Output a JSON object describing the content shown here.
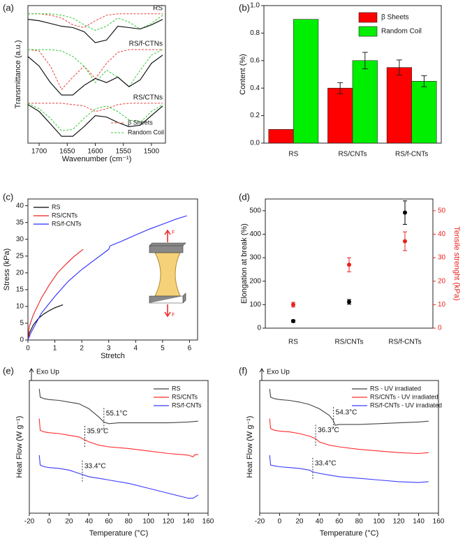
{
  "chart_data": [
    {
      "type": "spectra",
      "panel_label": "(a)",
      "xlabel": "Wavenumber (cm⁻¹)",
      "ylabel": "Transmittance (a.u.)",
      "xlim": [
        1720,
        1475
      ],
      "xticks": [
        1700,
        1650,
        1600,
        1550,
        1500
      ],
      "ylim": [
        0,
        100
      ],
      "x": [
        1720,
        1700,
        1680,
        1660,
        1640,
        1620,
        1600,
        1580,
        1560,
        1540,
        1520,
        1500,
        1480
      ],
      "line_color": "#000000",
      "legend": [
        {
          "name": "β Sheets",
          "color": "#e8413a"
        },
        {
          "name": "Random Coil",
          "color": "#33cc33"
        }
      ],
      "legend_position": "lower right",
      "samples": [
        {
          "label": "RS",
          "values": [
            90,
            89,
            87,
            85,
            84,
            81,
            73,
            75,
            85,
            84,
            83,
            86,
            90
          ],
          "beta_values": [
            94,
            94,
            93,
            91,
            86,
            84,
            89,
            93,
            94,
            94,
            94,
            94,
            94
          ],
          "random_values": [
            94,
            94,
            94,
            93,
            91,
            86,
            82,
            85,
            91,
            88,
            83,
            87,
            93
          ]
        },
        {
          "label": "RS/f-CTNs",
          "values": [
            63,
            56,
            44,
            35,
            35,
            42,
            47,
            44,
            48,
            41,
            46,
            58,
            64
          ],
          "beta_values": [
            68,
            67,
            56,
            39,
            48,
            56,
            47,
            58,
            66,
            68,
            68,
            68,
            68
          ],
          "random_values": [
            68,
            68,
            68,
            67,
            63,
            56,
            44,
            53,
            48,
            41,
            53,
            64,
            68
          ]
        },
        {
          "label": "RS/CTNs",
          "values": [
            28,
            23,
            14,
            5,
            5,
            12,
            20,
            19,
            15,
            12,
            13,
            20,
            27
          ],
          "beta_values": [
            29,
            29,
            29,
            29,
            28,
            27,
            23,
            25,
            28,
            29,
            29,
            29,
            29
          ],
          "random_values": [
            29,
            25,
            18,
            9,
            10,
            18,
            25,
            27,
            23,
            17,
            15,
            23,
            28
          ]
        }
      ]
    },
    {
      "type": "bar",
      "panel_label": "(b)",
      "ylabel": "Content (%)",
      "categories": [
        "RS",
        "RS/CNTs",
        "RS/f-CNTs"
      ],
      "series": [
        {
          "name": "β Sheets",
          "color": "#ff0000",
          "values": [
            0.1,
            0.4,
            0.55
          ],
          "errors": [
            0,
            0.04,
            0.055
          ]
        },
        {
          "name": "Random Coil",
          "color": "#00ee00",
          "values": [
            0.9,
            0.6,
            0.45
          ],
          "errors": [
            0,
            0.06,
            0.04
          ]
        }
      ],
      "ylim": [
        0,
        1
      ],
      "yticks": [
        {
          "value": 0,
          "label": "0.0"
        },
        0.2,
        0.4,
        0.6,
        0.8,
        {
          "value": 1,
          "label": "1.0"
        }
      ],
      "legend_position": "upper right"
    },
    {
      "type": "line",
      "panel_label": "(c)",
      "xlabel": "Stretch",
      "ylabel": "Stress (kPa)",
      "xlim": [
        0,
        6.3
      ],
      "xticks": [
        0,
        1,
        2,
        3,
        4,
        5,
        6
      ],
      "ylim": [
        0,
        42
      ],
      "yticks": [
        0,
        5,
        10,
        15,
        20,
        25,
        30,
        35,
        40
      ],
      "legend_position": "upper left",
      "inset_labels": [
        "F",
        "F"
      ],
      "series": [
        {
          "name": "RS",
          "color": "#000000",
          "x": [
            0,
            0.05,
            0.2,
            0.4,
            0.6,
            0.8,
            1.0,
            1.3
          ],
          "values": [
            0,
            2,
            4.5,
            6.5,
            7.8,
            8.8,
            9.6,
            10.5
          ]
        },
        {
          "name": "RS/CNTs",
          "color": "#e8211e",
          "x": [
            0,
            0.05,
            0.2,
            0.5,
            0.8,
            1.1,
            1.4,
            1.7,
            2.05
          ],
          "values": [
            0,
            4,
            7.5,
            12.5,
            16.5,
            20,
            22.5,
            24.8,
            27
          ]
        },
        {
          "name": "RS/f-CNTs",
          "color": "#2b2bff",
          "x": [
            0,
            0.1,
            0.5,
            1,
            1.5,
            2,
            2.5,
            3,
            3.05,
            3.5,
            4,
            4.5,
            5,
            5.5,
            5.9
          ],
          "values": [
            0,
            2,
            8,
            13,
            17.5,
            21,
            24,
            27,
            28,
            29.5,
            31.3,
            33,
            34.5,
            36,
            37
          ]
        }
      ]
    },
    {
      "type": "scatter",
      "panel_label": "(d)",
      "ylabel": "Elongation at break (%)",
      "y2label": "Tensile strenght (kPa)",
      "categories": [
        "RS",
        "RS/CNTs",
        "RS/f-CNTs"
      ],
      "ylim": [
        0,
        550
      ],
      "yticks": [
        0,
        100,
        200,
        300,
        400,
        500
      ],
      "y2lim": [
        0,
        55
      ],
      "y2ticks": [
        0,
        10,
        20,
        30,
        40,
        50
      ],
      "series": [
        {
          "color": "#000000",
          "values": [
            30,
            112,
            492
          ],
          "errors": [
            5,
            10,
            50
          ]
        },
        {
          "color": "#e8211e",
          "axis": "y2",
          "values": [
            10,
            27,
            37
          ],
          "errors": [
            1,
            3,
            4
          ]
        }
      ]
    },
    {
      "type": "line",
      "panel_label": "(e)",
      "xlabel": "Temperature (°C)",
      "ylabel": "Heat Flow (W g⁻¹)",
      "exo_label": "Exo Up",
      "xlim": [
        -20,
        160
      ],
      "xticks": [
        -20,
        0,
        20,
        40,
        60,
        80,
        100,
        120,
        140,
        160
      ],
      "ylim": [
        20,
        100
      ],
      "legend_position": "upper right",
      "series": [
        {
          "name": "RS",
          "color": "#444444",
          "x": [
            -10,
            -9,
            -5,
            0,
            10,
            20,
            30,
            40,
            50,
            55,
            60,
            70,
            80,
            100,
            120,
            140,
            150
          ],
          "values": [
            95,
            90,
            89,
            88.5,
            88,
            87,
            86,
            83,
            78,
            75,
            74,
            74.5,
            74.5,
            74.5,
            74.5,
            75,
            75.5
          ],
          "transition": {
            "x": 55.1,
            "label": "55.1°C"
          }
        },
        {
          "name": "RS/CNTs",
          "color": "#ff2a2a",
          "x": [
            -10,
            -9,
            -5,
            0,
            10,
            20,
            30,
            40,
            50,
            60,
            80,
            100,
            120,
            140,
            145,
            146,
            150
          ],
          "values": [
            77,
            70,
            69,
            68.5,
            68,
            67,
            66,
            63,
            61,
            60,
            59,
            57.5,
            56,
            55,
            54,
            55,
            55.5
          ],
          "transition": {
            "x": 35.9,
            "label": "35.9°C"
          }
        },
        {
          "name": "RS/f-CNTs",
          "color": "#3a3aff",
          "x": [
            -10,
            -9,
            -5,
            0,
            10,
            20,
            30,
            40,
            50,
            60,
            80,
            100,
            120,
            140,
            145,
            150
          ],
          "values": [
            55,
            49,
            48,
            47.5,
            47,
            46,
            44,
            42,
            41,
            40,
            38,
            35,
            32,
            29,
            29,
            31
          ],
          "transition": {
            "x": 33.4,
            "label": "33.4°C"
          }
        }
      ]
    },
    {
      "type": "line",
      "panel_label": "(f)",
      "xlabel": "Temperature (°C)",
      "ylabel": "Heat Flow (W g⁻¹)",
      "exo_label": "Exo Up",
      "xlim": [
        -20,
        160
      ],
      "xticks": [
        -20,
        0,
        20,
        40,
        60,
        80,
        100,
        120,
        140,
        160
      ],
      "ylim": [
        20,
        100
      ],
      "legend_position": "upper right",
      "series": [
        {
          "name": "RS - UV irradiated",
          "color": "#444444",
          "x": [
            -10,
            -9,
            -5,
            0,
            10,
            20,
            30,
            40,
            50,
            54,
            56,
            60,
            80,
            100,
            120,
            140,
            150
          ],
          "values": [
            95,
            90,
            89,
            88.5,
            88,
            87,
            85.5,
            83,
            79,
            76,
            73,
            73.5,
            73.5,
            74,
            74.5,
            75,
            75.5
          ],
          "transition": {
            "x": 54.3,
            "label": "54.3°C"
          }
        },
        {
          "name": "RS/CNTs - UV irradiated",
          "color": "#ff2a2a",
          "x": [
            -10,
            -9,
            -5,
            0,
            10,
            20,
            30,
            36,
            40,
            50,
            60,
            80,
            100,
            120,
            140,
            150
          ],
          "values": [
            77,
            71,
            70,
            69.5,
            69,
            68,
            66.5,
            65,
            63,
            61,
            60,
            58.5,
            57.5,
            56.5,
            56,
            56.5
          ],
          "transition": {
            "x": 36.3,
            "label": "36.3°C"
          }
        },
        {
          "name": "RS/f-CNTs - UV irradiated",
          "color": "#3a3aff",
          "x": [
            -10,
            -9,
            -5,
            0,
            10,
            20,
            30,
            33,
            40,
            50,
            60,
            80,
            100,
            120,
            140,
            150
          ],
          "values": [
            55,
            49,
            48.5,
            48,
            47.5,
            47,
            46,
            45,
            44,
            43,
            42,
            41,
            40,
            39,
            38.5,
            39
          ],
          "transition": {
            "x": 33.4,
            "label": "33.4°C"
          }
        }
      ]
    }
  ]
}
